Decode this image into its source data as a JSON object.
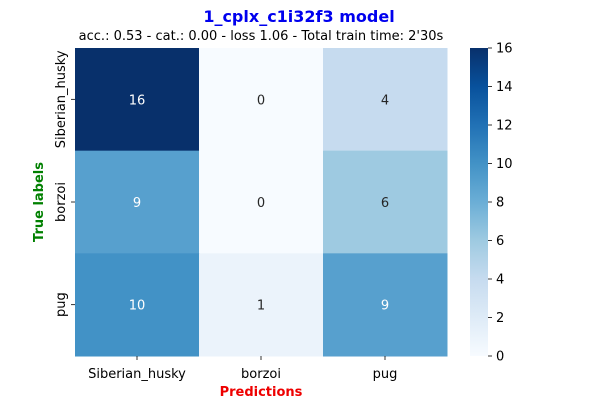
{
  "chart_data": {
    "type": "heatmap",
    "title": "1_cplx_c1i32f3 model",
    "subtitle": "acc.: 0.53 - cat.: 0.00 - loss 1.06 - Total train time: 2'30s",
    "xlabel": "Predictions",
    "ylabel": "True labels",
    "x_categories": [
      "Siberian_husky",
      "borzoi",
      "pug"
    ],
    "y_categories": [
      "Siberian_husky",
      "borzoi",
      "pug"
    ],
    "values": [
      [
        16,
        0,
        4
      ],
      [
        9,
        0,
        6
      ],
      [
        10,
        1,
        9
      ]
    ],
    "colorbar": {
      "range": [
        0,
        16
      ],
      "ticks": [
        0,
        2,
        4,
        6,
        8,
        10,
        12,
        14,
        16
      ],
      "colormap": "Blues"
    },
    "colors": {
      "title": "#0000ee",
      "xlabel": "#ee0000",
      "ylabel": "#008000"
    }
  }
}
